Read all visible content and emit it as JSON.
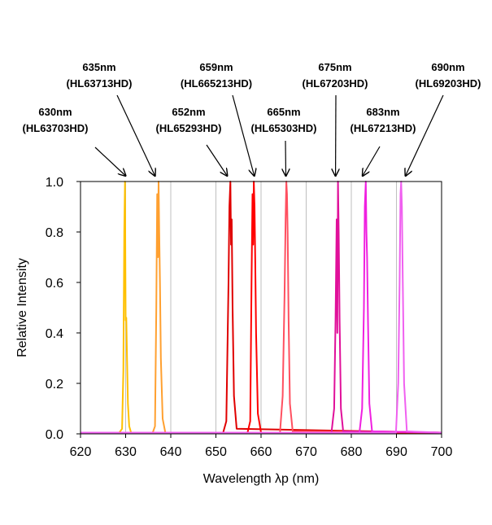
{
  "chart_data": {
    "type": "line",
    "title": "",
    "xlabel": "Wavelength λp (nm)",
    "ylabel": "Relative Intensity",
    "xlim": [
      620,
      700
    ],
    "ylim": [
      0,
      1.0
    ],
    "xticks": [
      620,
      630,
      640,
      650,
      660,
      670,
      680,
      690,
      700
    ],
    "yticks": [
      0.0,
      0.2,
      0.4,
      0.6,
      0.8,
      1.0
    ],
    "ytick_labels": [
      "0.0",
      "0.2",
      "0.4",
      "0.6",
      "0.8",
      "1.0"
    ],
    "grid": "vertical",
    "legend": "none",
    "series": [
      {
        "color": "#FFC000",
        "x": [
          620,
          628.6,
          629.2,
          629.5,
          629.7,
          629.85,
          630.0,
          630.15,
          630.3,
          630.5,
          630.8,
          631.2,
          700
        ],
        "y": [
          0.005,
          0.005,
          0.02,
          0.25,
          0.8,
          1.0,
          0.45,
          0.46,
          0.3,
          0.12,
          0.03,
          0.005,
          0.005
        ]
      },
      {
        "color": "#FFA030",
        "x": [
          620,
          636.0,
          636.5,
          636.8,
          637.0,
          637.15,
          637.3,
          637.45,
          637.6,
          637.8,
          638.2,
          638.8,
          700
        ],
        "y": [
          0.005,
          0.005,
          0.03,
          0.5,
          0.95,
          0.7,
          1.0,
          0.8,
          0.6,
          0.3,
          0.06,
          0.005,
          0.005
        ]
      },
      {
        "color": "#E00000",
        "x": [
          620,
          651.6,
          652.3,
          652.8,
          653.0,
          653.2,
          653.35,
          653.5,
          653.7,
          654.0,
          654.6,
          700
        ],
        "y": [
          0.005,
          0.005,
          0.05,
          0.6,
          0.9,
          1.0,
          0.75,
          0.85,
          0.5,
          0.15,
          0.02,
          0.005
        ]
      },
      {
        "color": "#FF0000",
        "x": [
          620,
          657.0,
          657.6,
          657.9,
          658.1,
          658.25,
          658.4,
          658.55,
          658.7,
          658.9,
          659.3,
          660.0,
          700
        ],
        "y": [
          0.005,
          0.005,
          0.05,
          0.6,
          0.95,
          0.75,
          1.0,
          0.9,
          0.7,
          0.4,
          0.08,
          0.005,
          0.005
        ]
      },
      {
        "color": "#FF5060",
        "x": [
          620,
          664.2,
          664.8,
          665.2,
          665.45,
          665.6,
          665.75,
          665.9,
          666.1,
          666.4,
          667.0,
          700
        ],
        "y": [
          0.005,
          0.005,
          0.15,
          0.55,
          0.85,
          1.0,
          0.95,
          0.8,
          0.45,
          0.12,
          0.01,
          0.005
        ]
      },
      {
        "color": "#E0109A",
        "x": [
          620,
          675.6,
          676.2,
          676.5,
          676.75,
          676.9,
          677.05,
          677.2,
          677.4,
          677.7,
          678.2,
          700
        ],
        "y": [
          0.005,
          0.005,
          0.1,
          0.45,
          0.85,
          0.4,
          1.0,
          0.8,
          0.45,
          0.1,
          0.01,
          0.005
        ]
      },
      {
        "color": "#F020E0",
        "x": [
          620,
          681.8,
          682.4,
          682.8,
          683.0,
          683.2,
          683.35,
          683.5,
          683.7,
          684.0,
          684.6,
          700
        ],
        "y": [
          0.005,
          0.005,
          0.1,
          0.5,
          0.9,
          1.0,
          0.8,
          0.7,
          0.45,
          0.12,
          0.01,
          0.005
        ]
      },
      {
        "color": "#F060F0",
        "x": [
          620,
          689.9,
          690.4,
          690.7,
          690.9,
          691.05,
          691.2,
          691.4,
          691.7,
          692.3,
          700
        ],
        "y": [
          0.005,
          0.005,
          0.2,
          0.6,
          0.95,
          1.0,
          0.9,
          0.6,
          0.2,
          0.01,
          0.005
        ]
      }
    ],
    "annotations": [
      {
        "line1": "630nm",
        "line2": "(HL63703HD)",
        "target_x": 630,
        "target_y": 1.0
      },
      {
        "line1": "635nm",
        "line2": "(HL63713HD)",
        "target_x": 636.5,
        "target_y": 1.0
      },
      {
        "line1": "652nm",
        "line2": "(HL65293HD)",
        "target_x": 652.5,
        "target_y": 1.0
      },
      {
        "line1": "659nm",
        "line2": "(HL665213HD)",
        "target_x": 658.5,
        "target_y": 1.0
      },
      {
        "line1": "665nm",
        "line2": "(HL65303HD)",
        "target_x": 665.5,
        "target_y": 1.0
      },
      {
        "line1": "675nm",
        "line2": "(HL67203HD)",
        "target_x": 676.5,
        "target_y": 1.0
      },
      {
        "line1": "683nm",
        "line2": "(HL67213HD)",
        "target_x": 682.5,
        "target_y": 1.0
      },
      {
        "line1": "690nm",
        "line2": "(HL69203HD)",
        "target_x": 692.0,
        "target_y": 1.0
      }
    ]
  }
}
